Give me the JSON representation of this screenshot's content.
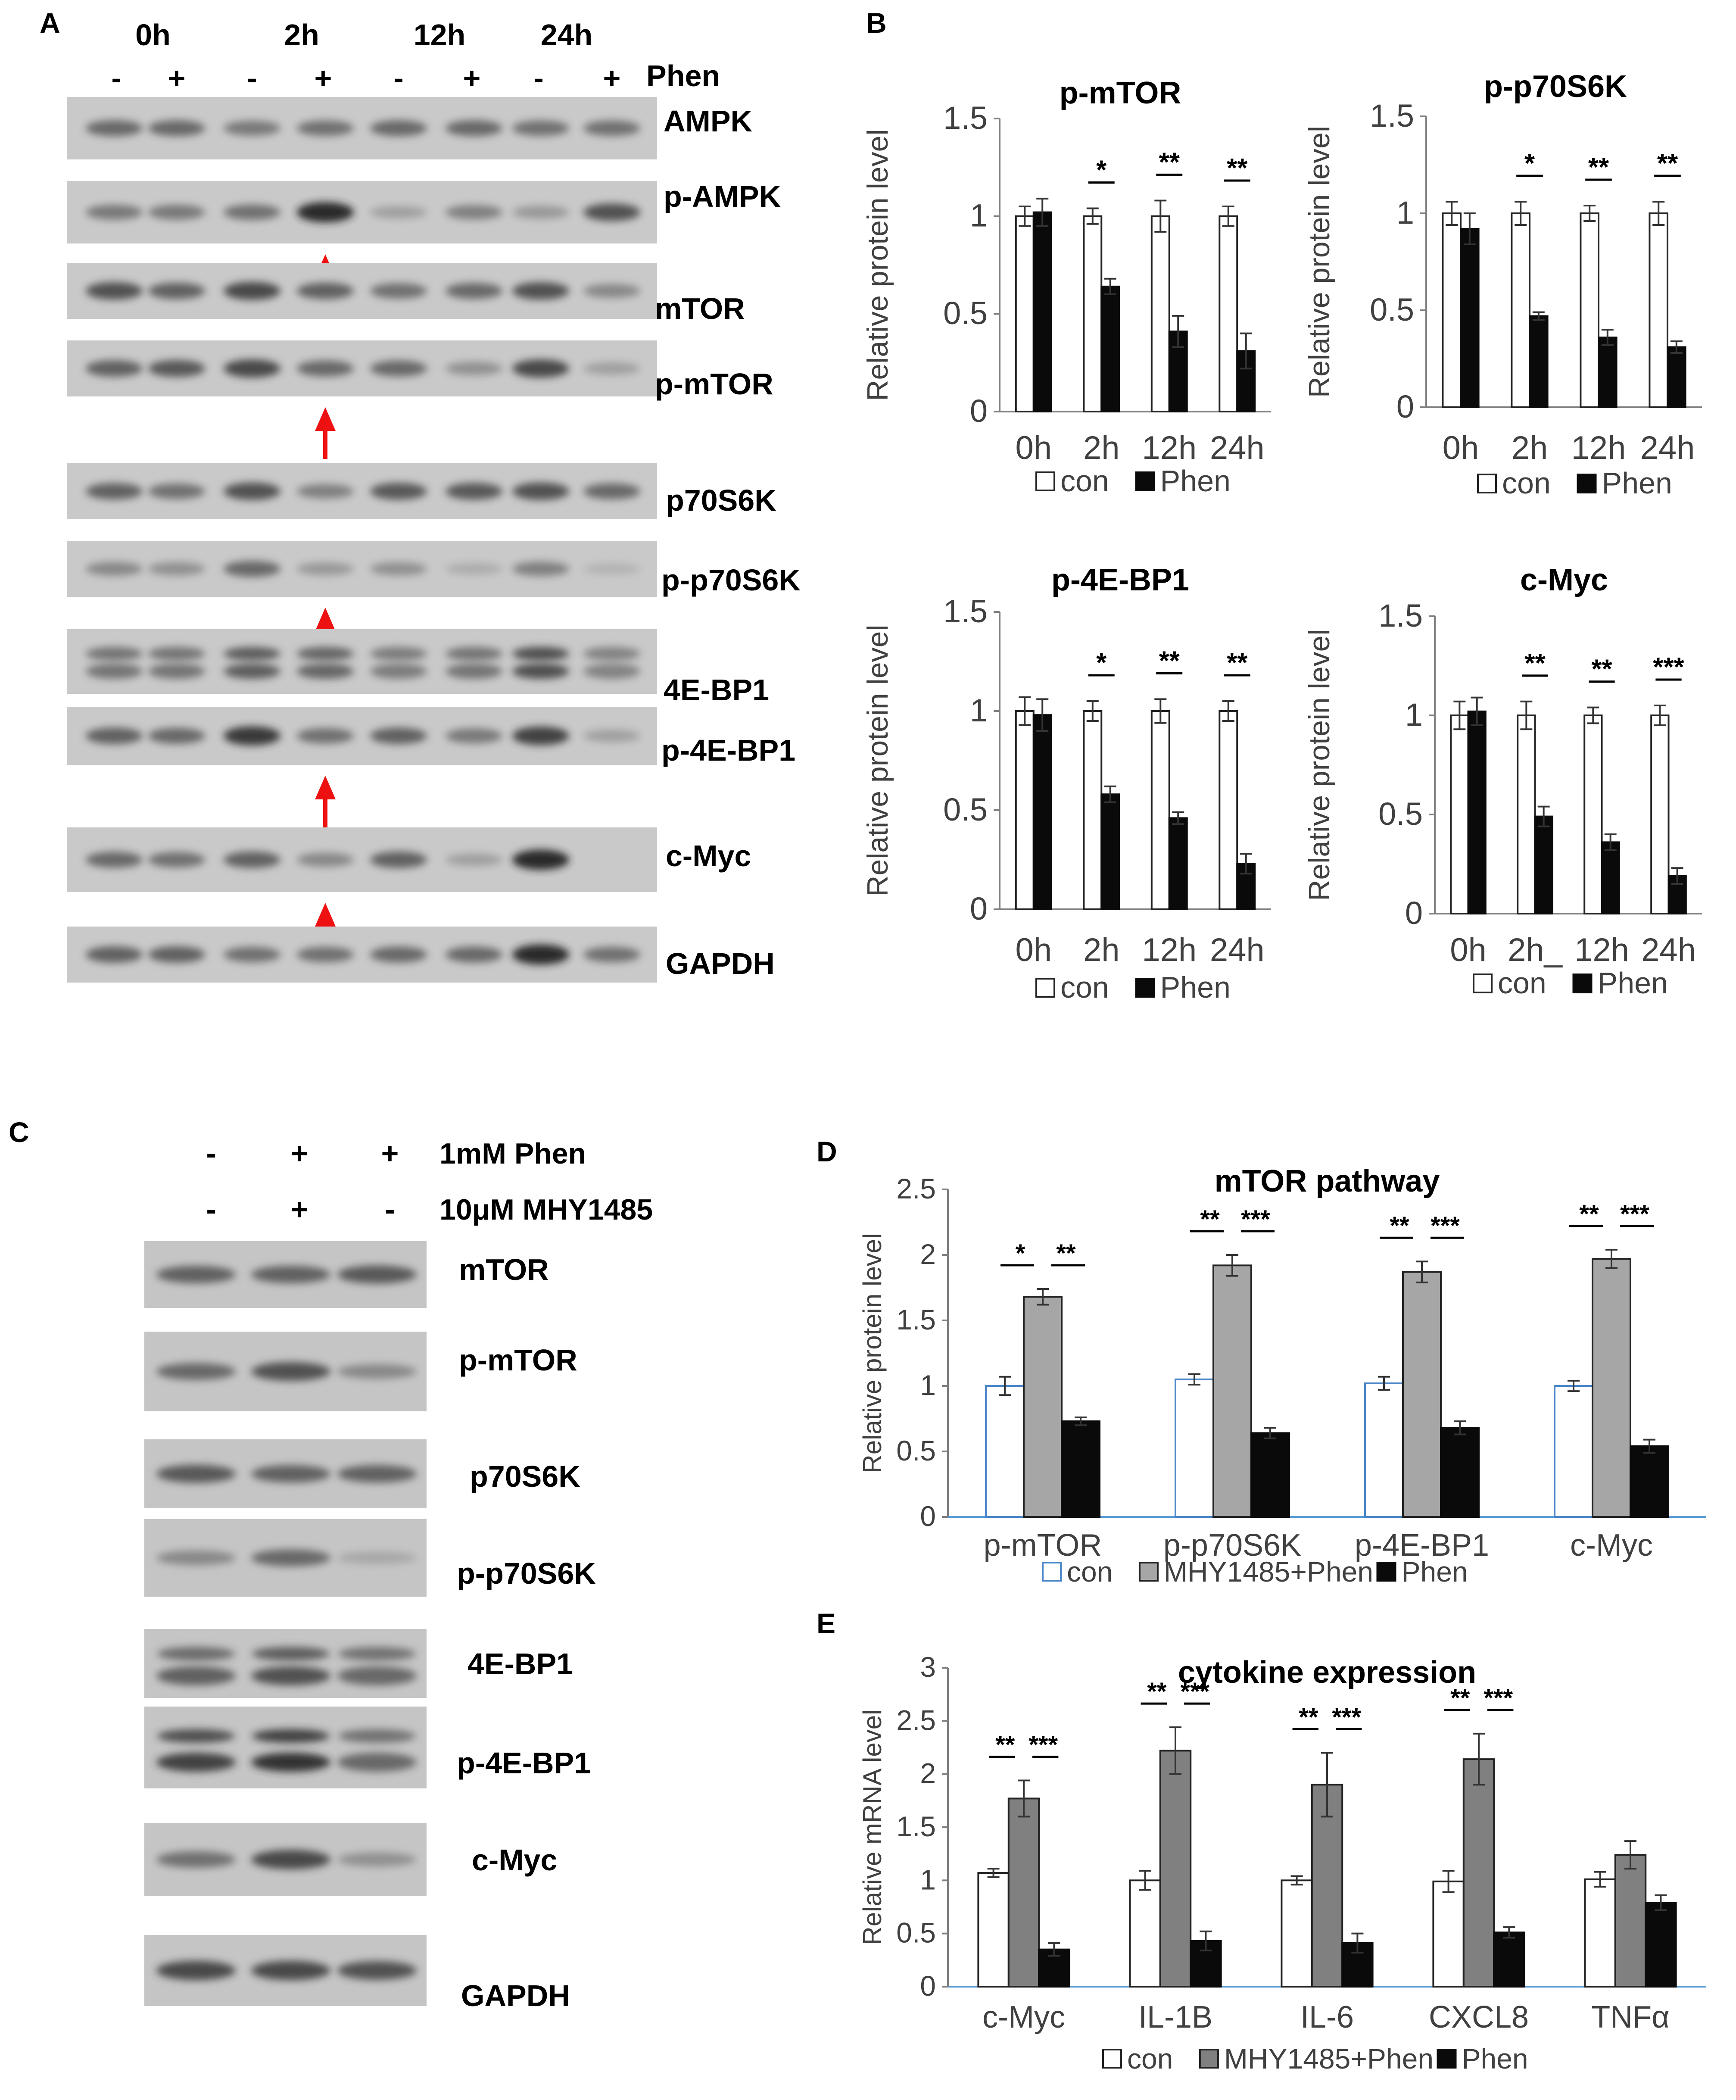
{
  "panel_labels": [
    "A",
    "B",
    "C",
    "D",
    "E"
  ],
  "blot_a": {
    "timepoints": [
      "0h",
      "2h",
      "12h",
      "24h"
    ],
    "lane_signs": [
      "-",
      "+",
      "-",
      "+",
      "-",
      "+",
      "-",
      "+"
    ],
    "treatment_label": "Phen",
    "rows": [
      {
        "label": "AMPK",
        "intensity": [
          0.55,
          0.55,
          0.45,
          0.5,
          0.55,
          0.55,
          0.5,
          0.5
        ],
        "arrow": false
      },
      {
        "label": "p-AMPK",
        "intensity": [
          0.45,
          0.45,
          0.5,
          0.95,
          0.2,
          0.4,
          0.25,
          0.7
        ],
        "arrow": true
      },
      {
        "label": "mTOR",
        "intensity": [
          0.7,
          0.6,
          0.75,
          0.6,
          0.5,
          0.55,
          0.7,
          0.35
        ],
        "arrow": false
      },
      {
        "label": "p-mTOR",
        "intensity": [
          0.6,
          0.65,
          0.75,
          0.55,
          0.55,
          0.3,
          0.75,
          0.2
        ],
        "arrow": true
      },
      {
        "label": "p70S6K",
        "intensity": [
          0.6,
          0.5,
          0.7,
          0.4,
          0.65,
          0.65,
          0.7,
          0.55
        ],
        "arrow": false
      },
      {
        "label": "p-p70S6K",
        "intensity": [
          0.35,
          0.3,
          0.55,
          0.25,
          0.3,
          0.12,
          0.4,
          0.08
        ],
        "arrow": true
      },
      {
        "label": "4E-BP1",
        "intensity": [
          0.5,
          0.5,
          0.65,
          0.6,
          0.45,
          0.5,
          0.75,
          0.4
        ],
        "arrow": false
      },
      {
        "label": "p-4E-BP1",
        "intensity": [
          0.6,
          0.55,
          0.85,
          0.5,
          0.6,
          0.45,
          0.8,
          0.2
        ],
        "arrow": true
      },
      {
        "label": "c-Myc",
        "intensity": [
          0.55,
          0.5,
          0.6,
          0.35,
          0.6,
          0.2,
          0.95,
          0.0
        ],
        "arrow": true
      },
      {
        "label": "GAPDH",
        "intensity": [
          0.6,
          0.6,
          0.5,
          0.5,
          0.55,
          0.55,
          0.95,
          0.5
        ],
        "arrow": false
      }
    ]
  },
  "blot_c": {
    "treatments": [
      {
        "signs": [
          "-",
          "+",
          "+"
        ],
        "label": "1mM Phen"
      },
      {
        "signs": [
          "-",
          "+",
          "-"
        ],
        "label": "10μM MHY1485"
      }
    ],
    "rows": [
      {
        "label": "mTOR",
        "intensity": [
          0.6,
          0.6,
          0.65
        ]
      },
      {
        "label": "p-mTOR",
        "intensity": [
          0.55,
          0.7,
          0.35
        ]
      },
      {
        "label": "p70S6K",
        "intensity": [
          0.65,
          0.6,
          0.6
        ]
      },
      {
        "label": "p-p70S6K",
        "intensity": [
          0.35,
          0.55,
          0.15
        ]
      },
      {
        "label": "4E-BP1",
        "intensity": [
          0.6,
          0.7,
          0.55
        ]
      },
      {
        "label": "p-4E-BP1",
        "intensity": [
          0.8,
          0.9,
          0.55
        ]
      },
      {
        "label": "c-Myc",
        "intensity": [
          0.5,
          0.75,
          0.3
        ]
      },
      {
        "label": "GAPDH",
        "intensity": [
          0.75,
          0.75,
          0.7
        ]
      }
    ]
  },
  "chart_data": [
    {
      "panel": "B",
      "type": "bar",
      "title": "p-mTOR",
      "ylabel": "Relative protein level",
      "ylim": [
        0,
        1.5
      ],
      "yticks": [
        "0",
        "0.5",
        "1",
        "1.5"
      ],
      "categories": [
        "0h",
        "2h",
        "12h",
        "24h"
      ],
      "series": [
        {
          "name": "con",
          "values": [
            1.0,
            1.0,
            1.0,
            1.0
          ],
          "errors": [
            0.05,
            0.04,
            0.08,
            0.05
          ]
        },
        {
          "name": "Phen",
          "values": [
            1.02,
            0.64,
            0.41,
            0.31
          ],
          "errors": [
            0.07,
            0.04,
            0.08,
            0.09
          ]
        }
      ],
      "significance": [
        "",
        "*",
        "**",
        "**"
      ],
      "legend": [
        "con",
        "Phen"
      ]
    },
    {
      "panel": "B",
      "type": "bar",
      "title": "p-p70S6K",
      "ylabel": "Relative protein level",
      "ylim": [
        0,
        1.5
      ],
      "yticks": [
        "0",
        "0.5",
        "1",
        "1.5"
      ],
      "categories": [
        "0h",
        "2h",
        "12h",
        "24h"
      ],
      "series": [
        {
          "name": "con",
          "values": [
            1.0,
            1.0,
            1.0,
            1.0
          ],
          "errors": [
            0.06,
            0.06,
            0.04,
            0.06
          ]
        },
        {
          "name": "Phen",
          "values": [
            0.92,
            0.47,
            0.36,
            0.31
          ],
          "errors": [
            0.08,
            0.02,
            0.04,
            0.03
          ]
        }
      ],
      "significance": [
        "",
        "*",
        "**",
        "**"
      ],
      "legend": [
        "con",
        "Phen"
      ]
    },
    {
      "panel": "B",
      "type": "bar",
      "title": "p-4E-BP1",
      "ylabel": "Relative protein level",
      "ylim": [
        0,
        1.5
      ],
      "yticks": [
        "0",
        "0.5",
        "1",
        "1.5"
      ],
      "categories": [
        "0h",
        "2h",
        "12h",
        "24h"
      ],
      "series": [
        {
          "name": "con",
          "values": [
            1.0,
            1.0,
            1.0,
            1.0
          ],
          "errors": [
            0.07,
            0.05,
            0.06,
            0.05
          ]
        },
        {
          "name": "Phen",
          "values": [
            0.98,
            0.58,
            0.46,
            0.23
          ],
          "errors": [
            0.08,
            0.04,
            0.03,
            0.05
          ]
        }
      ],
      "significance": [
        "",
        "*",
        "**",
        "**"
      ],
      "legend": [
        "con",
        "Phen"
      ]
    },
    {
      "panel": "B",
      "type": "bar",
      "title": "c-Myc",
      "ylabel": "Relative protein level",
      "ylim": [
        0,
        1.5
      ],
      "yticks": [
        "0",
        "0.5",
        "1",
        "1.5"
      ],
      "categories": [
        "0h",
        "2h_",
        "12h",
        "24h"
      ],
      "series": [
        {
          "name": "con",
          "values": [
            1.0,
            1.0,
            1.0,
            1.0
          ],
          "errors": [
            0.07,
            0.07,
            0.04,
            0.05
          ]
        },
        {
          "name": "Phen",
          "values": [
            1.02,
            0.49,
            0.36,
            0.19
          ],
          "errors": [
            0.07,
            0.05,
            0.04,
            0.04
          ]
        }
      ],
      "significance": [
        "",
        "**",
        "**",
        "***"
      ],
      "legend": [
        "con",
        "Phen"
      ]
    },
    {
      "panel": "D",
      "type": "bar",
      "title": "mTOR pathway",
      "ylabel": "Relative protein level",
      "ylim": [
        0,
        2.5
      ],
      "yticks": [
        "0",
        "0.5",
        "1",
        "1.5",
        "2",
        "2.5"
      ],
      "categories": [
        "p-mTOR",
        "p-p70S6K",
        "p-4E-BP1",
        "c-Myc"
      ],
      "series": [
        {
          "name": "con",
          "values": [
            1.0,
            1.05,
            1.02,
            1.0
          ],
          "errors": [
            0.07,
            0.04,
            0.05,
            0.04
          ]
        },
        {
          "name": "MHY1485+Phen",
          "values": [
            1.68,
            1.92,
            1.87,
            1.97
          ],
          "errors": [
            0.06,
            0.08,
            0.08,
            0.07
          ]
        },
        {
          "name": "Phen",
          "values": [
            0.73,
            0.64,
            0.68,
            0.54
          ],
          "errors": [
            0.03,
            0.04,
            0.05,
            0.05
          ]
        }
      ],
      "significance": [
        [
          "*",
          "**"
        ],
        [
          "**",
          "***"
        ],
        [
          "**",
          "***"
        ],
        [
          "**",
          "***"
        ]
      ],
      "legend": [
        "con",
        "MHY1485+Phen",
        "Phen"
      ]
    },
    {
      "panel": "E",
      "type": "bar",
      "title": "cytokine expression",
      "ylabel": "Relative mRNA level",
      "ylim": [
        0,
        3
      ],
      "yticks": [
        "0",
        "0.5",
        "1",
        "1.5",
        "2",
        "2.5",
        "3"
      ],
      "categories": [
        "c-Myc",
        "IL-1B",
        "IL-6",
        "CXCL8",
        "TNFα"
      ],
      "series": [
        {
          "name": "con",
          "values": [
            1.07,
            1.0,
            1.0,
            0.99,
            1.01
          ],
          "errors": [
            0.04,
            0.09,
            0.04,
            0.1,
            0.07
          ]
        },
        {
          "name": "MHY1485+Phen",
          "values": [
            1.77,
            2.22,
            1.9,
            2.14,
            1.24
          ],
          "errors": [
            0.17,
            0.22,
            0.3,
            0.24,
            0.13
          ]
        },
        {
          "name": "Phen",
          "values": [
            0.35,
            0.43,
            0.41,
            0.51,
            0.79
          ],
          "errors": [
            0.06,
            0.09,
            0.09,
            0.05,
            0.07
          ]
        }
      ],
      "significance": [
        [
          "**",
          "***"
        ],
        [
          "**",
          "***"
        ],
        [
          "**",
          "***"
        ],
        [
          "**",
          "***"
        ],
        [
          "",
          ""
        ]
      ],
      "legend": [
        "con",
        "MHY1485+Phen",
        "Phen"
      ]
    }
  ]
}
